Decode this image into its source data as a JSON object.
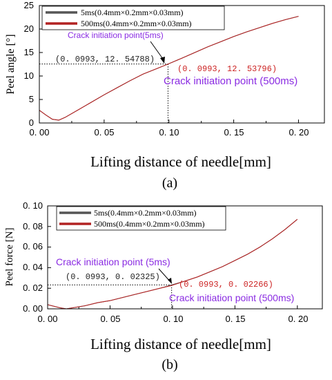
{
  "chart_data": [
    {
      "type": "line",
      "panel_label": "(a)",
      "xlabel": "Lifting distance of needle[mm]",
      "ylabel": "Peel angle [°]",
      "xlim": [
        0,
        0.22
      ],
      "ylim": [
        0,
        25
      ],
      "xticks": [
        "0. 00",
        "0. 05",
        "0. 10",
        "0. 15",
        "0. 20"
      ],
      "yticks": [
        "0",
        "5",
        "10",
        "15",
        "20",
        "25"
      ],
      "grid": false,
      "legend_position": "top-left",
      "series": [
        {
          "name": "5ms(0.4mm×0.2mm×0.03mm)",
          "color": "#555555",
          "x": [
            0,
            0.005,
            0.01,
            0.015,
            0.02,
            0.03,
            0.04,
            0.05,
            0.06,
            0.07,
            0.08,
            0.09,
            0.0993,
            0.11,
            0.12,
            0.13,
            0.14,
            0.15,
            0.16,
            0.17,
            0.18,
            0.19,
            0.2
          ],
          "y": [
            2.7,
            1.7,
            0.8,
            0.6,
            1.2,
            2.8,
            4.4,
            6.0,
            7.5,
            9.0,
            10.4,
            11.5,
            12.55,
            13.8,
            15.0,
            16.2,
            17.3,
            18.4,
            19.4,
            20.3,
            21.2,
            22.0,
            22.7
          ]
        },
        {
          "name": "500ms(0.4mm×0.2mm×0.03mm)",
          "color": "#b22222",
          "x": [
            0,
            0.005,
            0.01,
            0.015,
            0.02,
            0.03,
            0.04,
            0.05,
            0.06,
            0.07,
            0.08,
            0.09,
            0.0993,
            0.11,
            0.12,
            0.13,
            0.14,
            0.15,
            0.16,
            0.17,
            0.18,
            0.19,
            0.2
          ],
          "y": [
            2.7,
            1.7,
            0.8,
            0.6,
            1.2,
            2.8,
            4.4,
            6.0,
            7.5,
            9.0,
            10.4,
            11.5,
            12.54,
            13.8,
            15.0,
            16.2,
            17.3,
            18.4,
            19.4,
            20.3,
            21.2,
            22.0,
            22.7
          ]
        }
      ],
      "annotations": [
        {
          "text": "Crack initiation point(5ms)",
          "color": "#8a2be2"
        },
        {
          "text": "(0. 0993, 12. 54788)",
          "color": "#222222"
        },
        {
          "text": "(0. 0993, 12. 53796)",
          "color": "#cc2222"
        },
        {
          "text": "Crack initiation point (500ms)",
          "color": "#8a2be2"
        }
      ]
    },
    {
      "type": "line",
      "panel_label": "(b)",
      "xlabel": "Lifting distance of needle[mm]",
      "ylabel": "Peel force [N]",
      "xlim": [
        0,
        0.22
      ],
      "ylim": [
        0,
        0.1
      ],
      "xticks": [
        "0. 00",
        "0. 05",
        "0. 10",
        "0. 15",
        "0. 20"
      ],
      "yticks": [
        "0. 00",
        "0. 02",
        "0. 04",
        "0. 06",
        "0. 08",
        "0. 10"
      ],
      "grid": false,
      "legend_position": "top-left",
      "series": [
        {
          "name": "5ms(0.4mm×0.2mm×0.03mm)",
          "color": "#555555",
          "x": [
            0,
            0.01,
            0.015,
            0.02,
            0.03,
            0.04,
            0.05,
            0.06,
            0.07,
            0.08,
            0.09,
            0.0993,
            0.11,
            0.12,
            0.13,
            0.14,
            0.15,
            0.16,
            0.17,
            0.18,
            0.19,
            0.2
          ],
          "y": [
            0.004,
            0.001,
            0.0,
            0.001,
            0.003,
            0.006,
            0.008,
            0.011,
            0.014,
            0.017,
            0.02,
            0.0233,
            0.027,
            0.031,
            0.036,
            0.041,
            0.047,
            0.053,
            0.06,
            0.068,
            0.077,
            0.087
          ]
        },
        {
          "name": "500ms(0.4mm×0.2mm×0.03mm)",
          "color": "#b22222",
          "x": [
            0,
            0.01,
            0.015,
            0.02,
            0.03,
            0.04,
            0.05,
            0.06,
            0.07,
            0.08,
            0.09,
            0.0993,
            0.11,
            0.12,
            0.13,
            0.14,
            0.15,
            0.16,
            0.17,
            0.18,
            0.19,
            0.2
          ],
          "y": [
            0.004,
            0.001,
            0.0,
            0.001,
            0.003,
            0.006,
            0.008,
            0.011,
            0.014,
            0.017,
            0.02,
            0.0227,
            0.027,
            0.031,
            0.036,
            0.041,
            0.047,
            0.053,
            0.06,
            0.068,
            0.077,
            0.087
          ]
        }
      ],
      "annotations": [
        {
          "text": "Crack initiation point (5ms)",
          "color": "#8a2be2"
        },
        {
          "text": "(0. 0993, 0. 02325)",
          "color": "#222222"
        },
        {
          "text": "(0. 0993, 0. 02266)",
          "color": "#cc2222"
        },
        {
          "text": "Crack initiation point (500ms)",
          "color": "#8a2be2"
        }
      ]
    }
  ]
}
